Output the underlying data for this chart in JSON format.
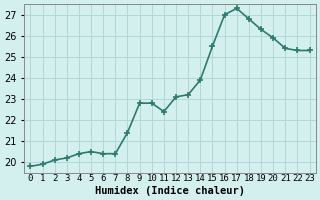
{
  "x": [
    0,
    1,
    2,
    3,
    4,
    5,
    6,
    7,
    8,
    9,
    10,
    11,
    12,
    13,
    14,
    15,
    16,
    17,
    18,
    19,
    20,
    21,
    22,
    23
  ],
  "y": [
    19.8,
    19.9,
    20.1,
    20.2,
    20.4,
    20.5,
    20.4,
    20.4,
    21.4,
    22.8,
    22.8,
    22.4,
    23.1,
    23.2,
    23.9,
    25.5,
    27.0,
    27.3,
    26.8,
    26.3,
    25.9,
    25.4,
    25.3,
    25.3
  ],
  "xlabel": "Humidex (Indice chaleur)",
  "ylim": [
    19.5,
    27.5
  ],
  "yticks": [
    20,
    21,
    22,
    23,
    24,
    25,
    26,
    27
  ],
  "bg_color": "#d4f0ee",
  "line_color": "#2d7a6e",
  "grid_color": "#b0d8d4",
  "marker": "+",
  "linewidth": 1.2,
  "markersize": 5
}
